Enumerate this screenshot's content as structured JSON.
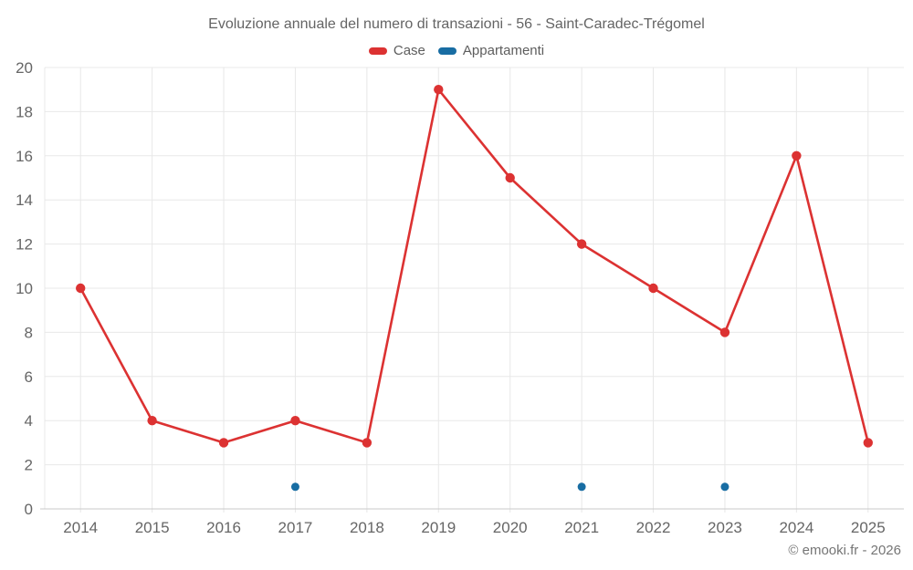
{
  "chart_data": {
    "type": "line",
    "title": "Evoluzione annuale del numero di transazioni - 56 - Saint-Caradec-Trégomel",
    "categories": [
      "2014",
      "2015",
      "2016",
      "2017",
      "2018",
      "2019",
      "2020",
      "2021",
      "2022",
      "2023",
      "2024",
      "2025"
    ],
    "series": [
      {
        "name": "Case",
        "color": "#dc3232",
        "style": "line-with-markers",
        "values": [
          10,
          4,
          3,
          4,
          3,
          19,
          15,
          12,
          10,
          8,
          16,
          3
        ]
      },
      {
        "name": "Appartamenti",
        "color": "#186da3",
        "style": "markers-only",
        "values": [
          null,
          null,
          null,
          1,
          null,
          null,
          null,
          1,
          null,
          1,
          null,
          null
        ]
      }
    ],
    "xlabel": "",
    "ylabel": "",
    "ylim": [
      0,
      20
    ],
    "yticks": [
      0,
      2,
      4,
      6,
      8,
      10,
      12,
      14,
      16,
      18,
      20
    ],
    "grid": true,
    "legend_position": "top",
    "attribution": "© emooki.fr - 2026"
  }
}
